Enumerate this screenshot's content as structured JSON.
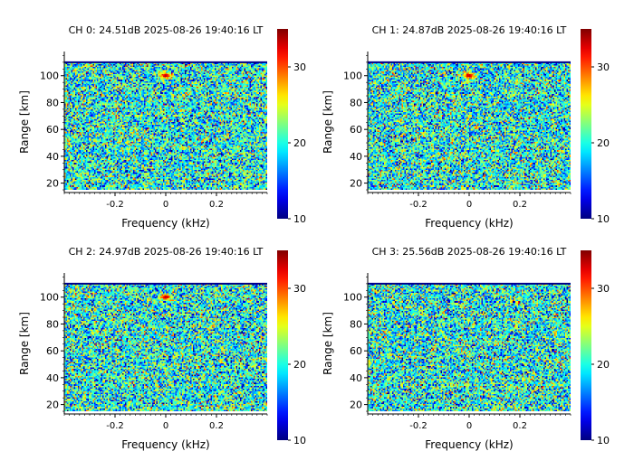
{
  "chart_data": [
    {
      "type": "heatmap",
      "title": "CH 0: 24.51dB 2025-08-26 19:40:16 LT",
      "xlabel": "Frequency (kHz)",
      "ylabel": "Range [km]",
      "xlim": [
        -0.4,
        0.4
      ],
      "ylim": [
        13,
        118
      ],
      "data_range": [
        15,
        110
      ],
      "xticks": [
        -0.2,
        0,
        0.2
      ],
      "xtick_labels": [
        "-0.2",
        "0",
        "0.2"
      ],
      "yticks": [
        20,
        40,
        60,
        80,
        100
      ],
      "ytick_labels": [
        "20",
        "40",
        "60",
        "80",
        "100"
      ],
      "colorbar": {
        "range": [
          10,
          35
        ],
        "ticks": [
          10,
          20,
          30
        ],
        "tick_labels": [
          "10",
          "20",
          "30"
        ],
        "colormap": "jet"
      },
      "background_level": 20,
      "echo": {
        "frequency": 0.0,
        "range": 100,
        "strength": 35
      }
    },
    {
      "type": "heatmap",
      "title": "CH 1: 24.87dB 2025-08-26 19:40:16 LT",
      "xlabel": "Frequency (kHz)",
      "ylabel": "Range [km]",
      "xlim": [
        -0.4,
        0.4
      ],
      "ylim": [
        13,
        118
      ],
      "data_range": [
        15,
        110
      ],
      "xticks": [
        -0.2,
        0,
        0.2
      ],
      "xtick_labels": [
        "-0.2",
        "0",
        "0.2"
      ],
      "yticks": [
        20,
        40,
        60,
        80,
        100
      ],
      "ytick_labels": [
        "20",
        "40",
        "60",
        "80",
        "100"
      ],
      "colorbar": {
        "range": [
          10,
          35
        ],
        "ticks": [
          10,
          20,
          30
        ],
        "tick_labels": [
          "10",
          "20",
          "30"
        ],
        "colormap": "jet"
      },
      "background_level": 20,
      "echo": {
        "frequency": 0.0,
        "range": 100,
        "strength": 35
      }
    },
    {
      "type": "heatmap",
      "title": "CH 2: 24.97dB 2025-08-26 19:40:16 LT",
      "xlabel": "Frequency (kHz)",
      "ylabel": "Range [km]",
      "xlim": [
        -0.4,
        0.4
      ],
      "ylim": [
        13,
        118
      ],
      "data_range": [
        15,
        110
      ],
      "xticks": [
        -0.2,
        0,
        0.2
      ],
      "xtick_labels": [
        "-0.2",
        "0",
        "0.2"
      ],
      "yticks": [
        20,
        40,
        60,
        80,
        100
      ],
      "ytick_labels": [
        "20",
        "40",
        "60",
        "80",
        "100"
      ],
      "colorbar": {
        "range": [
          10,
          35
        ],
        "ticks": [
          10,
          20,
          30
        ],
        "tick_labels": [
          "10",
          "20",
          "30"
        ],
        "colormap": "jet"
      },
      "background_level": 20,
      "echo": {
        "frequency": 0.0,
        "range": 100,
        "strength": 35
      }
    },
    {
      "type": "heatmap",
      "title": "CH 3: 25.56dB 2025-08-26 19:40:16 LT",
      "xlabel": "Frequency (kHz)",
      "ylabel": "Range [km]",
      "xlim": [
        -0.4,
        0.4
      ],
      "ylim": [
        13,
        118
      ],
      "data_range": [
        15,
        110
      ],
      "xticks": [
        -0.2,
        0,
        0.2
      ],
      "xtick_labels": [
        "-0.2",
        "0",
        "0.2"
      ],
      "yticks": [
        20,
        40,
        60,
        80,
        100
      ],
      "ytick_labels": [
        "20",
        "40",
        "60",
        "80",
        "100"
      ],
      "colorbar": {
        "range": [
          10,
          35
        ],
        "ticks": [
          10,
          20,
          30
        ],
        "tick_labels": [
          "10",
          "20",
          "30"
        ],
        "colormap": "jet"
      },
      "background_level": 20,
      "echo": null
    }
  ]
}
